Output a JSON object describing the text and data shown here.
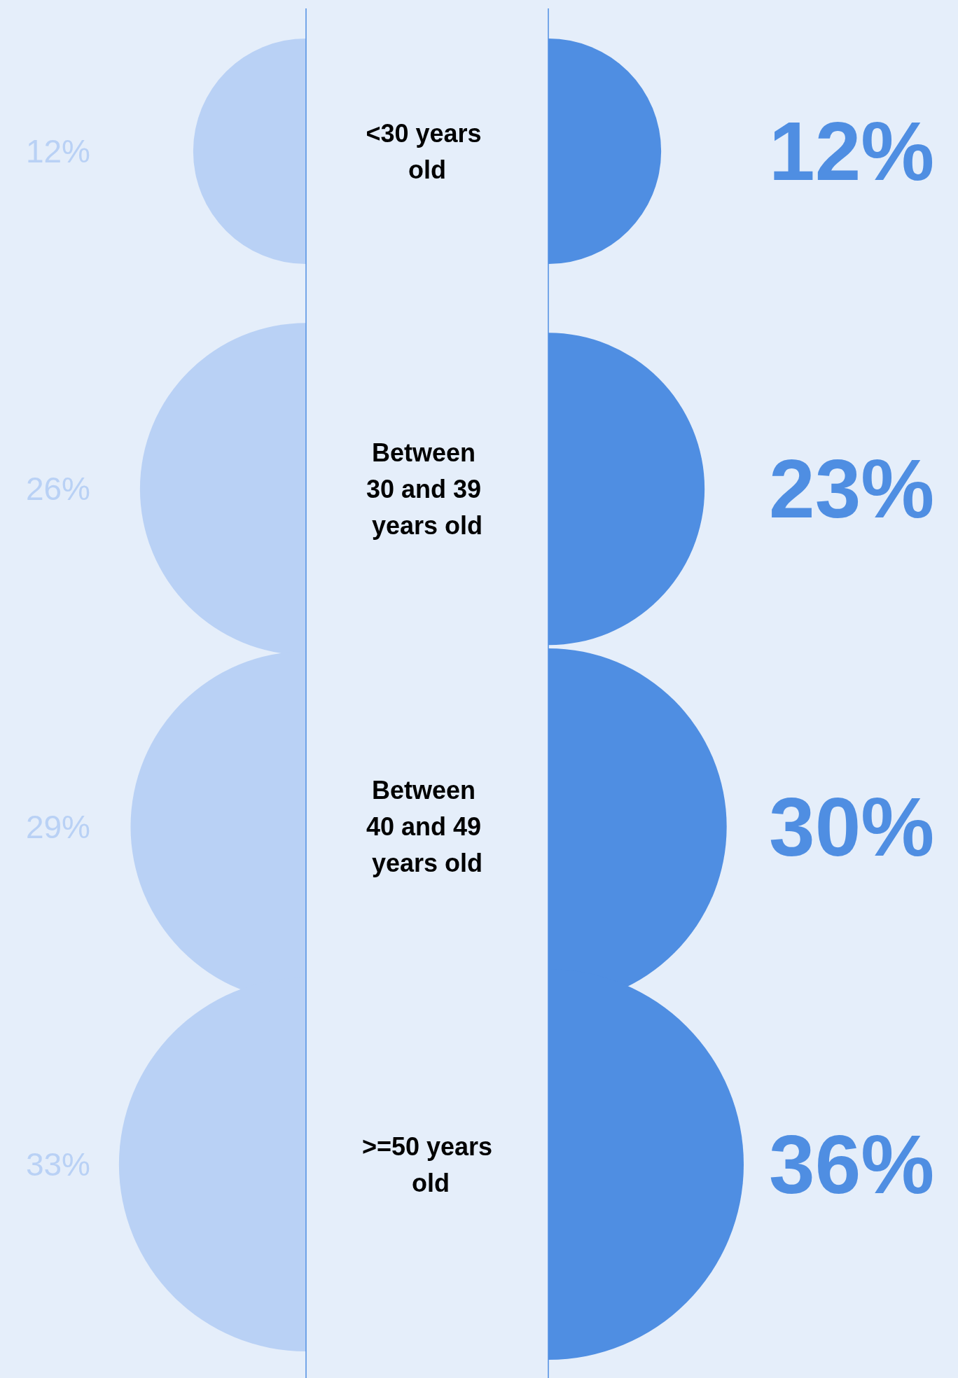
{
  "chart_data": {
    "type": "other",
    "categories": [
      "<30 years old",
      "Between 30 and 39 years old",
      "Between 40 and 49 years old",
      ">=50 years old"
    ],
    "series": [
      {
        "color": "#b9d1f5",
        "values": [
          12,
          26,
          29,
          33
        ],
        "value_labels": [
          "12%",
          "26%",
          "29%",
          "33%"
        ]
      },
      {
        "color": "#4f8ee2",
        "values": [
          12,
          23,
          30,
          36
        ],
        "value_labels": [
          "12%",
          "23%",
          "30%",
          "36%"
        ]
      }
    ]
  }
}
